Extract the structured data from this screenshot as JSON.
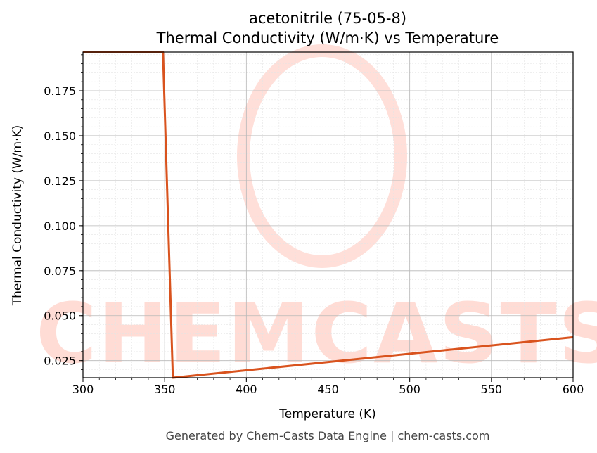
{
  "chart_data": {
    "type": "line",
    "title": "acetonitrile (75-05-8)",
    "subtitle": "Thermal Conductivity (W/m·K) vs Temperature",
    "xlabel": "Temperature (K)",
    "ylabel": "Thermal Conductivity (W/m·K)",
    "xlim": [
      300,
      600
    ],
    "ylim": [
      0.0155,
      0.1965
    ],
    "xticks": [
      300,
      350,
      400,
      450,
      500,
      550,
      600
    ],
    "xtick_labels": [
      "300",
      "350",
      "400",
      "450",
      "500",
      "550",
      "600"
    ],
    "yticks": [
      0.025,
      0.05,
      0.075,
      0.1,
      0.125,
      0.15,
      0.175
    ],
    "ytick_labels": [
      "0.025",
      "0.050",
      "0.075",
      "0.100",
      "0.125",
      "0.150",
      "0.175"
    ],
    "grid": true,
    "series": [
      {
        "color": "#d9531e",
        "x": [
          300,
          349,
          355,
          600
        ],
        "y": [
          0.1965,
          0.1965,
          0.0155,
          0.038
        ]
      }
    ]
  },
  "footer": "Generated by Chem-Casts Data Engine | chem-casts.com",
  "watermark": {
    "text": "CHEMCASTS",
    "color": "#ffdcd5"
  }
}
